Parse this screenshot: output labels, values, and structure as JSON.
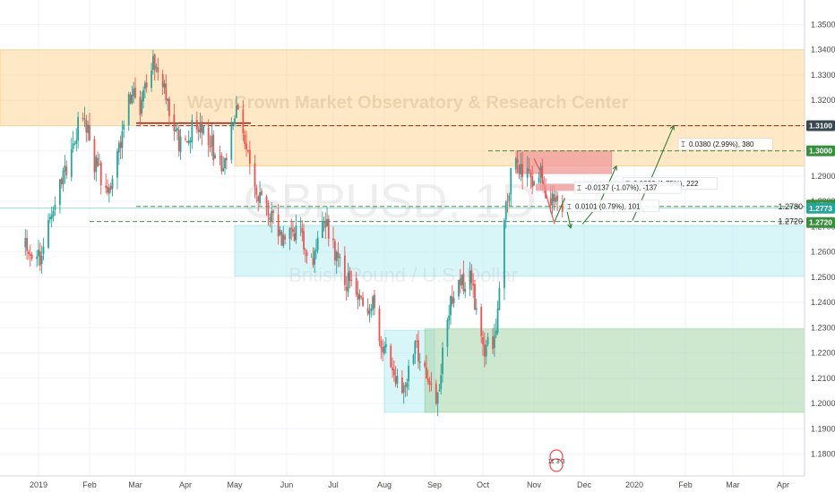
{
  "colors": {
    "up": "#26a69a",
    "down": "#ef5350",
    "orange_zone": "#ffcc80",
    "red_zone": "#ef9a9a",
    "blue_zone": "#b2ebf2",
    "green_zone": "#a5d6a7",
    "level_line": "#2e7d32",
    "resistance_line": "#8b1a1a",
    "tag_green": "#388e3c",
    "tag_dark": "#37474f",
    "tag_price": "#26a69a",
    "arrow": "#2e7d32"
  },
  "watermark": {
    "brand": "WaynCrown Market Observatory & Research Center",
    "symbol": "GBPUSD, 1D",
    "description": "British Pound / U.S. Dollar"
  },
  "chart_data": {
    "type": "candlestick",
    "symbol": "GBPUSD",
    "interval": "1D",
    "y_axis": {
      "ylim": [
        1.175,
        1.355
      ],
      "ticks": [
        "1.3500",
        "1.3400",
        "1.3300",
        "1.3200",
        "1.3100",
        "1.3000",
        "1.2900",
        "1.2800",
        "1.2700",
        "1.2600",
        "1.2500",
        "1.2400",
        "1.2300",
        "1.2200",
        "1.2100",
        "1.2000",
        "1.1900",
        "1.1800"
      ],
      "position": "right"
    },
    "x_axis": {
      "ticks": [
        "2019",
        "Feb",
        "Mar",
        "Apr",
        "May",
        "Jun",
        "Jul",
        "Aug",
        "Sep",
        "Oct",
        "Nov",
        "Dec",
        "2020",
        "Feb",
        "Mar",
        "Apr"
      ]
    },
    "price_tags": [
      {
        "value": 1.31,
        "label": "1.3100",
        "style": "dark"
      },
      {
        "value": 1.3,
        "label": "1.3000",
        "style": "green"
      },
      {
        "value": 1.278,
        "label": "1.2780",
        "style": "green"
      },
      {
        "value": 1.2773,
        "label": "1.2773",
        "style": "price"
      },
      {
        "value": 1.272,
        "label": "1.2720",
        "style": "green"
      }
    ],
    "horizontal_levels": [
      {
        "value": 1.278,
        "label": "1.2780"
      },
      {
        "value": 1.272,
        "label": "1.2720"
      }
    ],
    "zones": [
      {
        "name": "resistance-zone",
        "color": "orange",
        "from_date": "2019-01",
        "to_date": "extend-right",
        "high": 1.34,
        "low": 1.31
      },
      {
        "name": "upper-resistance-zone",
        "color": "orange",
        "from_date": "2019-05-01",
        "to_date": "extend-right",
        "high": 1.31,
        "low": 1.294
      },
      {
        "name": "supply-zone",
        "color": "red",
        "from_date": "2019-10-21",
        "to_date": "2019-12-18",
        "high": 1.3,
        "low": 1.291
      },
      {
        "name": "demand-zone-blue",
        "color": "blue",
        "from_date": "2019-05-01",
        "to_date": "extend-right",
        "high": 1.2705,
        "low": 1.2505
      },
      {
        "name": "demand-zone-blue-lower",
        "color": "blue",
        "from_date": "2019-08-01",
        "to_date": "2019-09-01",
        "high": 1.229,
        "low": 1.1965
      },
      {
        "name": "demand-zone-green",
        "color": "green",
        "from_date": "2019-08-26",
        "to_date": "extend-right",
        "high": 1.2295,
        "low": 1.1965
      }
    ],
    "measurements": [
      {
        "text": "0.0380 (2.99%), 380"
      },
      {
        "text": "0.0222 (1.75%), 222"
      },
      {
        "text": "-0.0137 (-1.07%), -137"
      },
      {
        "text": "0.0101 (0.79%), 101"
      }
    ],
    "ohlc_summary": {
      "jan_2019": {
        "low": 1.248,
        "high": 1.3215
      },
      "mar_2019": {
        "high": 1.3385
      },
      "aug_2019": {
        "low": 1.2015
      },
      "sep_2019": {
        "low": 1.1958
      },
      "oct_2019": {
        "high": 1.3012
      },
      "last_close": 1.2773
    },
    "events": [
      {
        "text": "11 3 3"
      }
    ]
  }
}
